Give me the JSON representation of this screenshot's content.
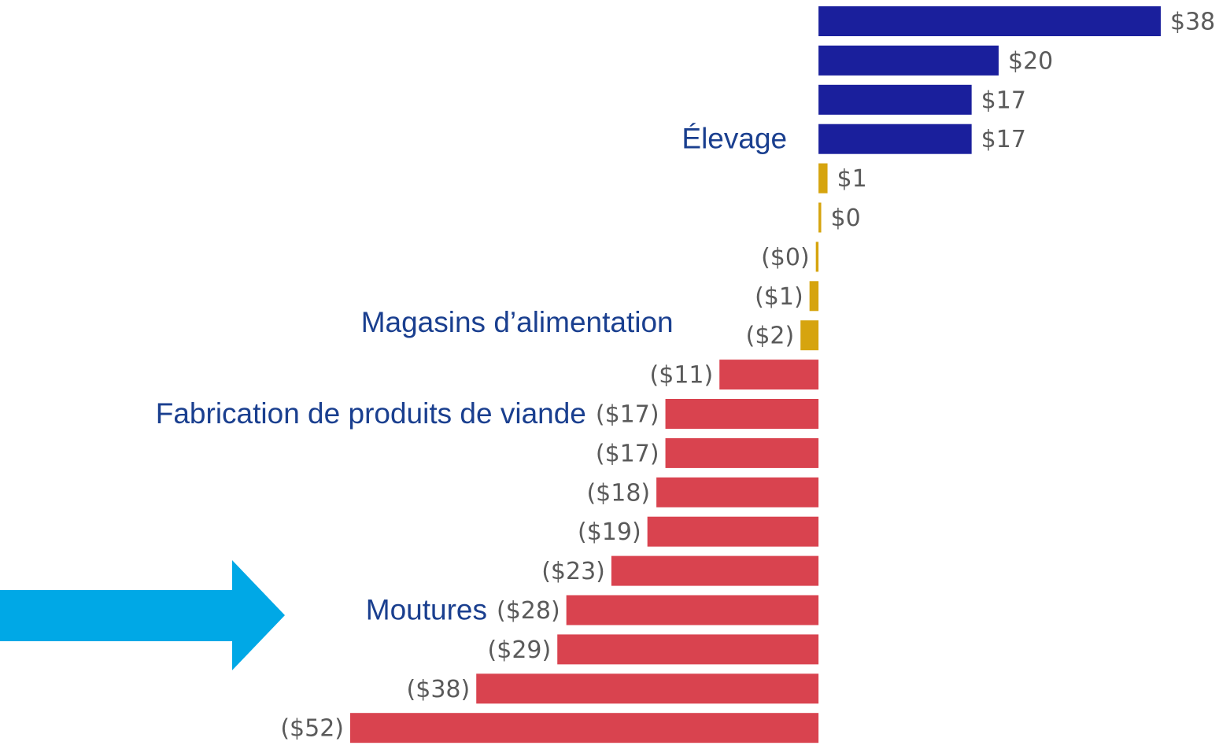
{
  "chart_data": {
    "type": "bar",
    "orientation": "horizontal",
    "categories": [
      null,
      null,
      null,
      "Élevage",
      null,
      null,
      null,
      null,
      "Magasins d’alimentation",
      null,
      "Fabrication de produits de viande",
      null,
      null,
      null,
      null,
      "Moutures",
      null,
      null,
      null
    ],
    "values": [
      38,
      20,
      17,
      17,
      1,
      0.3,
      -0.3,
      -1,
      -2,
      -11,
      -17,
      -17,
      -18,
      -19,
      -23,
      -28,
      -29,
      -38,
      -52
    ],
    "value_labels": [
      "$38",
      "$20",
      "$17",
      "$17",
      "$1",
      "$0",
      "($0)",
      "($1)",
      "($2)",
      "($11)",
      "($17)",
      "($17)",
      "($18)",
      "($19)",
      "($23)",
      "($28)",
      "($29)",
      "($38)",
      "($52)"
    ],
    "colors": [
      "#1a1f9c",
      "#1a1f9c",
      "#1a1f9c",
      "#1a1f9c",
      "#d6a40e",
      "#d6a40e",
      "#d6a40e",
      "#d6a40e",
      "#d6a40e",
      "#d9434f",
      "#d9434f",
      "#d9434f",
      "#d9434f",
      "#d9434f",
      "#d9434f",
      "#d9434f",
      "#d9434f",
      "#d9434f",
      "#d9434f"
    ]
  }
}
